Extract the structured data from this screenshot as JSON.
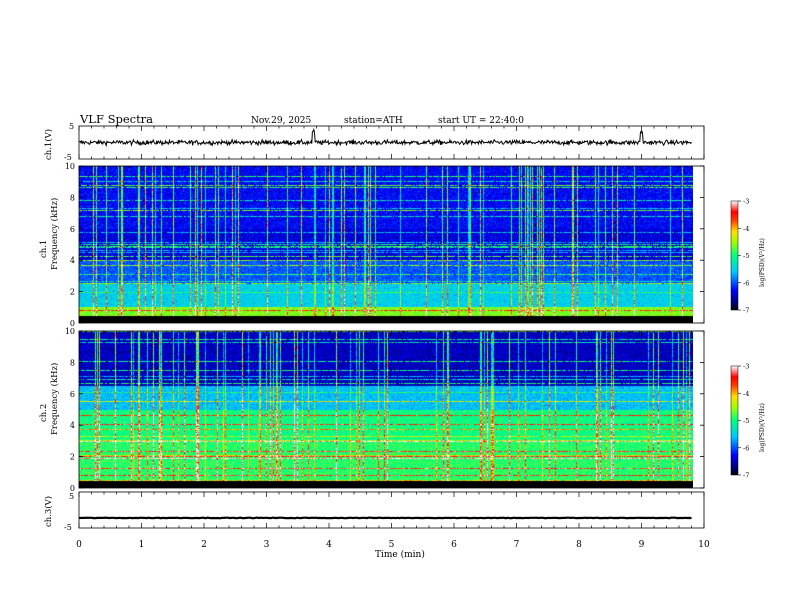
{
  "header": {
    "title": "VLF Spectra",
    "date": "Nov.29, 2025",
    "station": "station=ATH",
    "start_ut": "start UT = 22:40:0"
  },
  "chart_data": [
    {
      "type": "line",
      "panel": "ch1-waveform",
      "ylabel": "ch.1(V)",
      "ylim": [
        -5,
        5
      ],
      "yticks": [
        "5",
        "-5"
      ],
      "xlim": [
        0,
        10
      ],
      "description_values": {
        "baseline": 0,
        "typical_amplitude": 1.2,
        "spikes_at_min": [
          3.75,
          9.0
        ]
      }
    },
    {
      "type": "heatmap",
      "panel": "ch1-spectrogram",
      "ylabel_top": "ch.1",
      "ylabel": "Frequency (kHz)",
      "ylim": [
        0,
        10
      ],
      "yticks": [
        "0",
        "2",
        "4",
        "6",
        "8",
        "10"
      ],
      "xlim": [
        0,
        9.8
      ],
      "colorbar": {
        "label": "log(PSD)(V²/Hz)",
        "range": [
          -7,
          -3
        ],
        "ticks": [
          "-3",
          "-4",
          "-5",
          "-6",
          "-7"
        ]
      },
      "band_levels": [
        {
          "from_khz": 0,
          "to_khz": 0.4,
          "level": -7
        },
        {
          "from_khz": 0.4,
          "to_khz": 1.0,
          "level": -4.6
        },
        {
          "from_khz": 1.0,
          "to_khz": 2.5,
          "level": -5.5
        },
        {
          "from_khz": 2.5,
          "to_khz": 4.0,
          "level": -6.0
        },
        {
          "from_khz": 4.0,
          "to_khz": 6.0,
          "level": -6.4
        },
        {
          "from_khz": 6.0,
          "to_khz": 10.0,
          "level": -6.3
        }
      ]
    },
    {
      "type": "heatmap",
      "panel": "ch2-spectrogram",
      "ylabel_top": "ch.2",
      "ylabel": "Frequency (kHz)",
      "ylim": [
        0,
        10
      ],
      "yticks": [
        "0",
        "2",
        "4",
        "6",
        "8",
        "10"
      ],
      "xlim": [
        0,
        9.8
      ],
      "colorbar": {
        "label": "log(PSD)(V²/Hz)",
        "range": [
          -7,
          -3
        ],
        "ticks": [
          "-3",
          "-4",
          "-5",
          "-6",
          "-7"
        ]
      },
      "band_levels": [
        {
          "from_khz": 0,
          "to_khz": 0.4,
          "level": -7
        },
        {
          "from_khz": 0.4,
          "to_khz": 3.0,
          "level": -4.9
        },
        {
          "from_khz": 3.0,
          "to_khz": 5.0,
          "level": -5.0
        },
        {
          "from_khz": 5.0,
          "to_khz": 6.5,
          "level": -5.6
        },
        {
          "from_khz": 6.5,
          "to_khz": 10.0,
          "level": -6.5
        }
      ]
    },
    {
      "type": "line",
      "panel": "ch3-waveform",
      "ylabel": "ch.3(V)",
      "ylim": [
        -5,
        5
      ],
      "yticks": [
        "5",
        "-5"
      ],
      "xlim": [
        0,
        10
      ],
      "description_values": {
        "baseline": -2.2,
        "typical_amplitude": 0.15
      }
    }
  ],
  "xaxis": {
    "label": "Time (min)",
    "ticks": [
      "0",
      "1",
      "2",
      "3",
      "4",
      "5",
      "6",
      "7",
      "8",
      "9",
      "10"
    ],
    "range": [
      0,
      10
    ]
  },
  "colors": {
    "line": "#000000",
    "axis": "#000000"
  }
}
